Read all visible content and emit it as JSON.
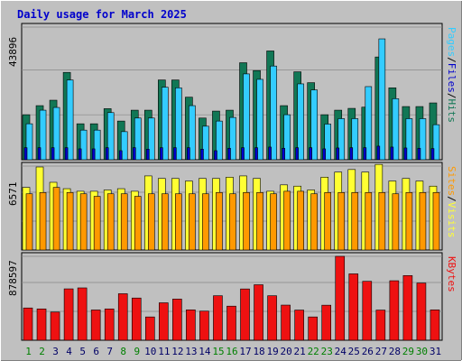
{
  "colors": {
    "frame": "#c0c0c0",
    "background": "#ffffff",
    "title": "#0000cc",
    "pages": "#33ccff",
    "files": "#0000cc",
    "hits": "#117755",
    "visits": "#ffff33",
    "sites": "#ff9900",
    "kbytes": "#ee1111",
    "weekend_tick": "#008000",
    "weekday_tick": "#000066",
    "grid": "#888888"
  },
  "chart_data": {
    "type": "bar",
    "title": "Daily usage for March 2025",
    "categories": [
      "1",
      "2",
      "3",
      "4",
      "5",
      "6",
      "7",
      "8",
      "9",
      "10",
      "11",
      "12",
      "13",
      "14",
      "15",
      "16",
      "17",
      "18",
      "19",
      "20",
      "21",
      "22",
      "23",
      "24",
      "25",
      "26",
      "27",
      "28",
      "29",
      "30",
      "31"
    ],
    "weekend_days": [
      "1",
      "2",
      "8",
      "9",
      "15",
      "16",
      "22",
      "23",
      "29",
      "30"
    ],
    "panels": [
      {
        "name": "hits-files-pages",
        "ymax": 43896,
        "ymax_label": "43896",
        "legend": [
          "Pages",
          "/",
          "Files",
          "/",
          "Hits"
        ],
        "series": [
          {
            "name": "Hits",
            "values": [
              14900,
              17900,
              19700,
              28900,
              11900,
              11900,
              16900,
              12800,
              16400,
              16400,
              26400,
              26400,
              20700,
              13800,
              16100,
              16400,
              32100,
              29500,
              36000,
              17900,
              29100,
              25500,
              14900,
              16400,
              17000,
              17400,
              34000,
              23800,
              17600,
              17600,
              18800
            ]
          },
          {
            "name": "Files",
            "values": [
              4000,
              4000,
              4000,
              4000,
              3600,
              3600,
              4000,
              3000,
              4000,
              3500,
              4000,
              4000,
              4000,
              3500,
              3000,
              3800,
              4000,
              4000,
              4200,
              3800,
              4000,
              4000,
              3600,
              3900,
              4000,
              4000,
              4500,
              4200,
              3900,
              3800,
              3700
            ]
          },
          {
            "name": "Pages",
            "values": [
              11900,
              16400,
              17300,
              26400,
              9800,
              9800,
              15600,
              9300,
              13800,
              13800,
              24000,
              23800,
              17900,
              11100,
              12800,
              14000,
              28400,
              26600,
              31000,
              14900,
              25100,
              23100,
              11800,
              13600,
              13600,
              24200,
              40000,
              20200,
              13600,
              13600,
              11600
            ]
          }
        ]
      },
      {
        "name": "visits-sites",
        "ymax": 6571,
        "ymax_label": "6571",
        "legend": [
          "Sites",
          "/",
          "Visits"
        ],
        "series": [
          {
            "name": "Visits",
            "values": [
              4900,
              6500,
              5300,
              4800,
              4600,
              4600,
              4700,
              4800,
              4600,
              5800,
              5600,
              5600,
              5400,
              5600,
              5600,
              5700,
              5800,
              5600,
              4600,
              5100,
              5000,
              4700,
              5700,
              6100,
              6300,
              6100,
              6700,
              5400,
              5600,
              5400,
              5000
            ]
          },
          {
            "name": "Sites",
            "values": [
              4400,
              4500,
              4900,
              4500,
              4400,
              4200,
              4400,
              4400,
              4200,
              4400,
              4400,
              4400,
              4400,
              4400,
              4500,
              4400,
              4500,
              4500,
              4400,
              4600,
              4600,
              4400,
              4500,
              4500,
              4500,
              4500,
              4500,
              4400,
              4500,
              4500,
              4500
            ]
          }
        ]
      },
      {
        "name": "kbytes",
        "ymax": 878597,
        "ymax_label": "878597",
        "legend": [
          "KBytes"
        ],
        "series": [
          {
            "name": "KBytes",
            "values": [
              338000,
              328000,
              295000,
              538000,
              548000,
              317000,
              328000,
              487000,
              442000,
              244000,
              392000,
              431000,
              318000,
              305000,
              466000,
              357000,
              537000,
              581000,
              466000,
              368000,
              316000,
              244000,
              367000,
              878597,
              695000,
              617000,
              316000,
              623000,
              677000,
              599000,
              318000
            ]
          }
        ]
      }
    ]
  }
}
